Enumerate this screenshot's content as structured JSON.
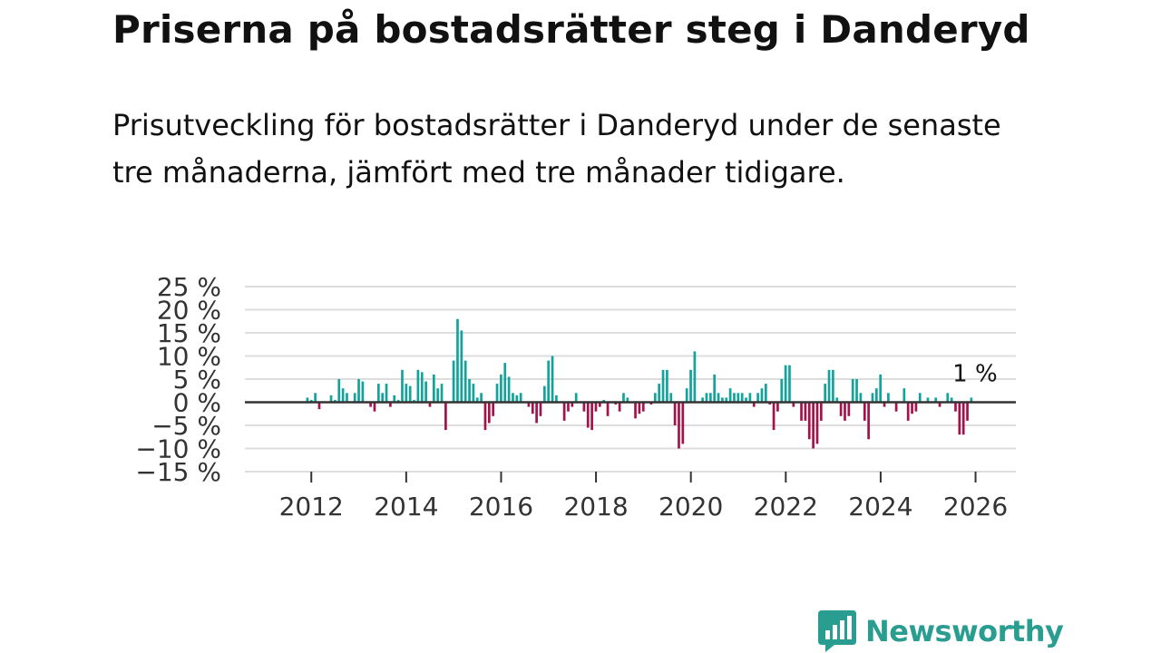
{
  "title": "Priserna på bostadsrätter steg i Danderyd",
  "subtitle": "Prisutveckling för bostadsrätter i Danderyd under de senaste tre månaderna, jämfört med tre månader tidigare.",
  "brand": {
    "name": "Newsworthy",
    "icon": "newsworthy-logo-icon",
    "color": "#2a9d91"
  },
  "colors": {
    "positive": "#13a39b",
    "negative": "#a3134a",
    "grid": "#dddddd",
    "zero": "#333333",
    "text": "#333333"
  },
  "chart_data": {
    "type": "bar",
    "title": "",
    "xlabel": "",
    "ylabel": "",
    "ylim": [
      -15,
      25
    ],
    "yticks": [
      "25 %",
      "20 %",
      "15 %",
      "10 %",
      "5 %",
      "0 %",
      "−5 %",
      "−10 %",
      "−15 %"
    ],
    "ytick_values": [
      25,
      20,
      15,
      10,
      5,
      0,
      -5,
      -10,
      -15
    ],
    "xticks": [
      "2012",
      "2014",
      "2016",
      "2018",
      "2020",
      "2022",
      "2024",
      "2026"
    ],
    "xtick_values": [
      2012,
      2014,
      2016,
      2018,
      2020,
      2022,
      2024,
      2026
    ],
    "x_start": 2011.917,
    "x_step": 0.0833,
    "x_range": [
      2010.6,
      2026.85
    ],
    "values": [
      1,
      0.5,
      2,
      -1.5,
      0,
      0,
      1.5,
      0.5,
      5,
      3,
      2,
      0,
      2,
      5,
      4.5,
      0,
      -1,
      -2,
      4,
      2,
      4,
      -1,
      1.5,
      0.5,
      7,
      4,
      3.5,
      0.5,
      7,
      6.5,
      4.5,
      -1,
      6,
      3,
      4,
      -6,
      0,
      9,
      18,
      15.5,
      9,
      5,
      4,
      1,
      2,
      -6,
      -4.5,
      -3,
      4,
      6,
      8.5,
      5.5,
      2,
      1.5,
      2,
      0,
      -1,
      -2.5,
      -4.5,
      -3,
      3.5,
      9,
      10,
      1.5,
      0,
      -4,
      -2,
      -1,
      2,
      0,
      -2,
      -5.5,
      -6,
      -2,
      -1,
      0.5,
      -3,
      0,
      -0.5,
      -2,
      2,
      1,
      0,
      -3.5,
      -2.5,
      -2,
      0,
      -0.5,
      2,
      4,
      7,
      7,
      2,
      -5,
      -10,
      -9,
      3,
      7,
      11,
      0,
      1,
      2,
      2,
      6,
      2,
      1,
      1,
      3,
      2,
      2,
      2,
      1,
      2,
      -1,
      2,
      3,
      4,
      -0.5,
      -6,
      -2,
      5,
      8,
      8,
      -1,
      0,
      -4,
      -4,
      -8,
      -10,
      -9,
      -4,
      4,
      7,
      7,
      1,
      -3,
      -4,
      -3,
      5,
      5,
      2,
      -4,
      -8,
      2,
      3,
      6,
      -1,
      2,
      0,
      -2,
      0,
      3,
      -4,
      -2.5,
      -2,
      2,
      0,
      1,
      0,
      1,
      -1,
      0,
      2,
      1,
      -2,
      -7,
      -7,
      -4,
      1
    ],
    "annotation": "1 %"
  }
}
